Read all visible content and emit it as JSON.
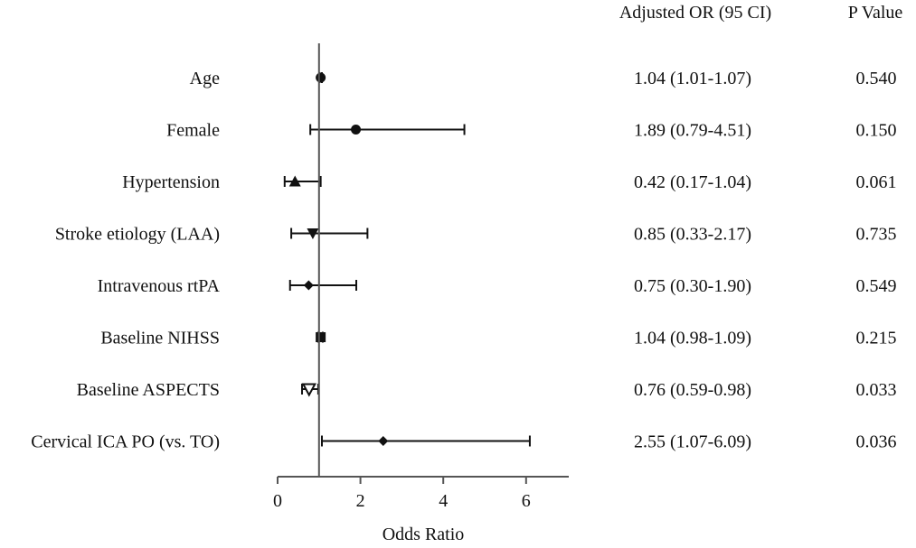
{
  "chart_data": {
    "type": "forest",
    "xlabel": "Odds Ratio",
    "xlim": [
      0,
      7
    ],
    "xticks": [
      0,
      2,
      4,
      6
    ],
    "reference_line": 1,
    "columns": {
      "or_header": "Adjusted OR (95 CI)",
      "p_header": "P Value"
    },
    "rows": [
      {
        "label": "Age",
        "or": 1.04,
        "lo": 1.01,
        "hi": 1.07,
        "marker": "circle",
        "or_text": "1.04 (1.01-1.07)",
        "p_text": "0.540"
      },
      {
        "label": "Female",
        "or": 1.89,
        "lo": 0.79,
        "hi": 4.51,
        "marker": "circle",
        "or_text": "1.89 (0.79-4.51)",
        "p_text": "0.150"
      },
      {
        "label": "Hypertension",
        "or": 0.42,
        "lo": 0.17,
        "hi": 1.04,
        "marker": "triangle-up",
        "or_text": "0.42 (0.17-1.04)",
        "p_text": "0.061"
      },
      {
        "label": "Stroke etiology (LAA)",
        "or": 0.85,
        "lo": 0.33,
        "hi": 2.17,
        "marker": "triangle-down",
        "or_text": "0.85 (0.33-2.17)",
        "p_text": "0.735"
      },
      {
        "label": "Intravenous rtPA",
        "or": 0.75,
        "lo": 0.3,
        "hi": 1.9,
        "marker": "diamond",
        "or_text": "0.75 (0.30-1.90)",
        "p_text": "0.549"
      },
      {
        "label": "Baseline NIHSS",
        "or": 1.04,
        "lo": 0.98,
        "hi": 1.09,
        "marker": "square",
        "or_text": "1.04 (0.98-1.09)",
        "p_text": "0.215"
      },
      {
        "label": "Baseline ASPECTS",
        "or": 0.76,
        "lo": 0.59,
        "hi": 0.98,
        "marker": "triangle-down-open",
        "or_text": "0.76 (0.59-0.98)",
        "p_text": "0.033"
      },
      {
        "label": "Cervical ICA PO (vs. TO)",
        "or": 2.55,
        "lo": 1.07,
        "hi": 6.09,
        "marker": "diamond",
        "or_text": "2.55 (1.07-6.09)",
        "p_text": "0.036"
      }
    ]
  }
}
